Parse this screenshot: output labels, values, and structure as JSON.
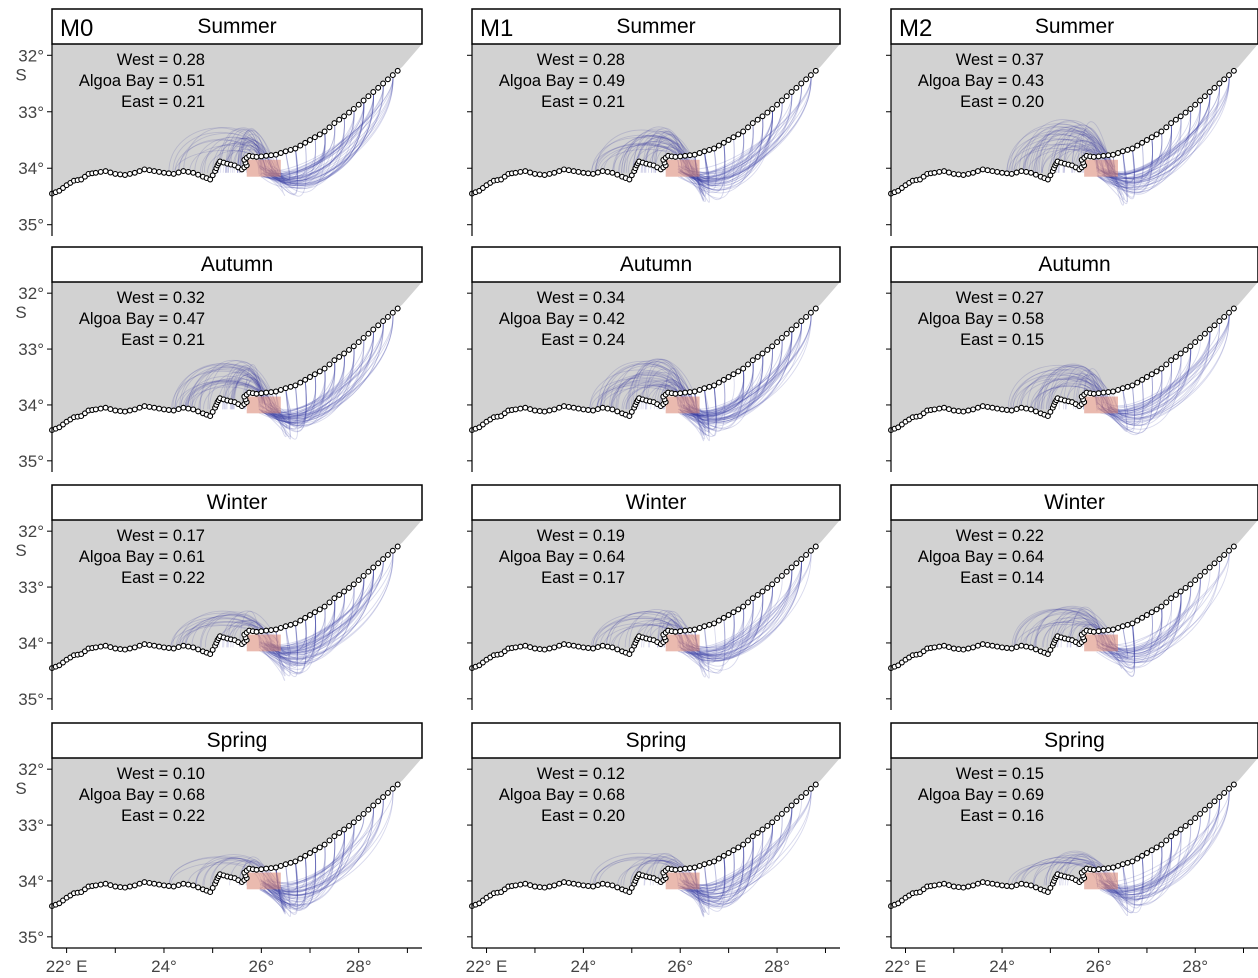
{
  "figure": {
    "models": [
      "M0",
      "M1",
      "M2"
    ],
    "seasons": [
      "Summer",
      "Autumn",
      "Winter",
      "Spring"
    ],
    "y_tick_labels": [
      "32°",
      "33°",
      "34°",
      "35°"
    ],
    "y_unit_label": "S",
    "x_tick_labels": [
      "22° E",
      "24°",
      "26°",
      "28°"
    ],
    "colors": {
      "land": "#d2d2d2",
      "panel_border": "#000000",
      "connection_lines": "#3b3fa3",
      "release_box": "#d9826e",
      "site_marker_fill": "#ffffff",
      "site_marker_stroke": "#000000"
    }
  },
  "chart_data": {
    "type": "connectivity-map",
    "xlim": [
      21.7,
      29.3
    ],
    "ylim": [
      35.2,
      31.8
    ],
    "x_ticks": [
      22,
      24,
      26,
      28
    ],
    "y_ticks": [
      32,
      33,
      34,
      35
    ],
    "label_names": [
      "West",
      "Algoa Bay",
      "East"
    ],
    "panels": [
      {
        "model": "M0",
        "season": "Summer",
        "values": [
          0.28,
          0.51,
          0.21
        ],
        "text": [
          "West = 0.28",
          "Algoa Bay = 0.51",
          "East = 0.21"
        ]
      },
      {
        "model": "M1",
        "season": "Summer",
        "values": [
          0.28,
          0.49,
          0.21
        ],
        "text": [
          "West = 0.28",
          "Algoa Bay = 0.49",
          "East = 0.21"
        ]
      },
      {
        "model": "M2",
        "season": "Summer",
        "values": [
          0.37,
          0.43,
          0.2
        ],
        "text": [
          "West = 0.37",
          "Algoa Bay = 0.43",
          "East = 0.20"
        ]
      },
      {
        "model": "M0",
        "season": "Autumn",
        "values": [
          0.32,
          0.47,
          0.21
        ],
        "text": [
          "West = 0.32",
          "Algoa Bay = 0.47",
          "East = 0.21"
        ]
      },
      {
        "model": "M1",
        "season": "Autumn",
        "values": [
          0.34,
          0.42,
          0.24
        ],
        "text": [
          "West = 0.34",
          "Algoa Bay = 0.42",
          "East = 0.24"
        ]
      },
      {
        "model": "M2",
        "season": "Autumn",
        "values": [
          0.27,
          0.58,
          0.15
        ],
        "text": [
          "West = 0.27",
          "Algoa Bay = 0.58",
          "East = 0.15"
        ]
      },
      {
        "model": "M0",
        "season": "Winter",
        "values": [
          0.17,
          0.61,
          0.22
        ],
        "text": [
          "West = 0.17",
          "Algoa Bay = 0.61",
          "East = 0.22"
        ]
      },
      {
        "model": "M1",
        "season": "Winter",
        "values": [
          0.19,
          0.64,
          0.17
        ],
        "text": [
          "West = 0.19",
          "Algoa Bay = 0.64",
          "East = 0.17"
        ]
      },
      {
        "model": "M2",
        "season": "Winter",
        "values": [
          0.22,
          0.64,
          0.14
        ],
        "text": [
          "West = 0.22",
          "Algoa Bay = 0.64",
          "East = 0.14"
        ]
      },
      {
        "model": "M0",
        "season": "Spring",
        "values": [
          0.1,
          0.68,
          0.22
        ],
        "text": [
          "West = 0.10",
          "Algoa Bay = 0.68",
          "East = 0.22"
        ]
      },
      {
        "model": "M1",
        "season": "Spring",
        "values": [
          0.12,
          0.68,
          0.2
        ],
        "text": [
          "West = 0.12",
          "Algoa Bay = 0.68",
          "East = 0.20"
        ]
      },
      {
        "model": "M2",
        "season": "Spring",
        "values": [
          0.15,
          0.69,
          0.16
        ],
        "text": [
          "West = 0.15",
          "Algoa Bay = 0.69",
          "East = 0.16"
        ]
      }
    ]
  }
}
